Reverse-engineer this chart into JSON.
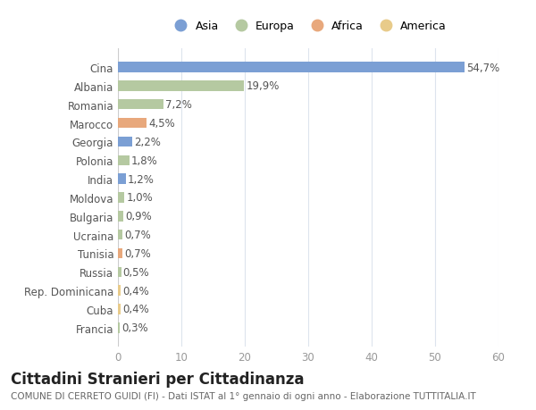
{
  "categories": [
    "Francia",
    "Cuba",
    "Rep. Dominicana",
    "Russia",
    "Tunisia",
    "Ucraina",
    "Bulgaria",
    "Moldova",
    "India",
    "Polonia",
    "Georgia",
    "Marocco",
    "Romania",
    "Albania",
    "Cina"
  ],
  "values": [
    0.3,
    0.4,
    0.4,
    0.5,
    0.7,
    0.7,
    0.9,
    1.0,
    1.2,
    1.8,
    2.2,
    4.5,
    7.2,
    19.9,
    54.7
  ],
  "labels": [
    "0,3%",
    "0,4%",
    "0,4%",
    "0,5%",
    "0,7%",
    "0,7%",
    "0,9%",
    "1,0%",
    "1,2%",
    "1,8%",
    "2,2%",
    "4,5%",
    "7,2%",
    "19,9%",
    "54,7%"
  ],
  "continent": [
    "Europa",
    "America",
    "America",
    "Europa",
    "Africa",
    "Europa",
    "Europa",
    "Europa",
    "Asia",
    "Europa",
    "Asia",
    "Africa",
    "Europa",
    "Europa",
    "Asia"
  ],
  "legend_labels": [
    "Asia",
    "Europa",
    "Africa",
    "America"
  ],
  "legend_colors": [
    "#7b9fd4",
    "#b5c9a1",
    "#e8a87c",
    "#e8cb8a"
  ],
  "bar_colors_map": {
    "Asia": "#7b9fd4",
    "Europa": "#b5c9a1",
    "Africa": "#e8a87c",
    "America": "#e8cb8a"
  },
  "title": "Cittadini Stranieri per Cittadinanza",
  "subtitle": "COMUNE DI CERRETO GUIDI (FI) - Dati ISTAT al 1° gennaio di ogni anno - Elaborazione TUTTITALIA.IT",
  "xlim": [
    0,
    60
  ],
  "xticks": [
    0,
    10,
    20,
    30,
    40,
    50,
    60
  ],
  "bg_color": "#ffffff",
  "grid_color": "#dde4ed",
  "bar_height": 0.55,
  "label_fontsize": 8.5,
  "title_fontsize": 12,
  "subtitle_fontsize": 7.5,
  "ytick_fontsize": 8.5,
  "xtick_fontsize": 8.5
}
